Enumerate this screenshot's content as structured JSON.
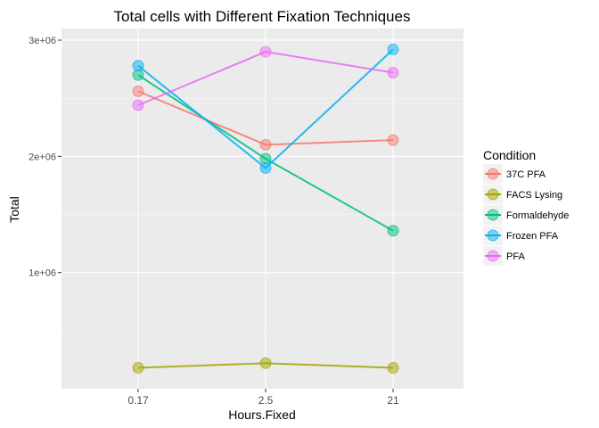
{
  "chart_data": {
    "type": "line",
    "title": "Total cells with Different Fixation Techniques",
    "xlabel": "Hours.Fixed",
    "ylabel": "Total",
    "categories": [
      "0.17",
      "2.5",
      "21"
    ],
    "ylim": [
      0,
      3100000
    ],
    "yticks": [
      {
        "value": 1000000,
        "label": "1e+06"
      },
      {
        "value": 2000000,
        "label": "2e+06"
      },
      {
        "value": 3000000,
        "label": "3e+06"
      }
    ],
    "grid": true,
    "legend": {
      "title": "Condition",
      "placement": "right"
    },
    "series": [
      {
        "name": "37C PFA",
        "color": "#F8766D",
        "values": [
          2560000,
          2100000,
          2140000
        ]
      },
      {
        "name": "FACS Lysing",
        "color": "#A3A500",
        "values": [
          180000,
          220000,
          180000
        ]
      },
      {
        "name": "Formaldehyde",
        "color": "#00BF7D",
        "values": [
          2700000,
          1980000,
          1360000
        ]
      },
      {
        "name": "Frozen PFA",
        "color": "#00B0F6",
        "values": [
          2780000,
          1900000,
          2920000
        ]
      },
      {
        "name": "PFA",
        "color": "#E76BF3",
        "values": [
          2440000,
          2900000,
          2720000
        ]
      }
    ]
  }
}
